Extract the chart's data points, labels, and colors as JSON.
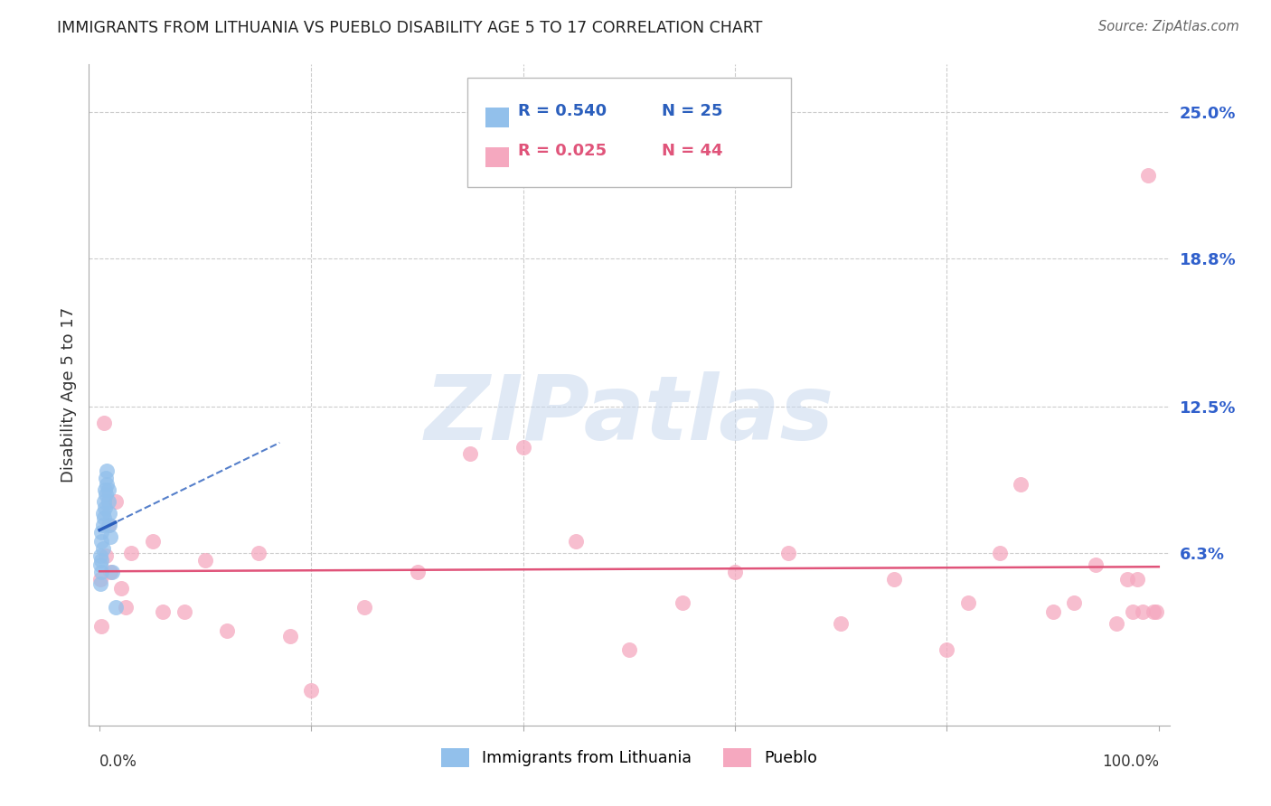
{
  "title": "IMMIGRANTS FROM LITHUANIA VS PUEBLO DISABILITY AGE 5 TO 17 CORRELATION CHART",
  "source": "Source: ZipAtlas.com",
  "ylabel": "Disability Age 5 to 17",
  "ytick_vals": [
    0.0,
    0.063,
    0.125,
    0.188,
    0.25
  ],
  "ytick_labels": [
    "",
    "6.3%",
    "12.5%",
    "18.8%",
    "25.0%"
  ],
  "legend_label_blue": "Immigrants from Lithuania",
  "legend_label_pink": "Pueblo",
  "blue_color": "#92c0eb",
  "pink_color": "#f5a8bf",
  "blue_line_color": "#2b5fbd",
  "pink_line_color": "#e0547a",
  "watermark_text": "ZIPatlas",
  "blue_scatter_x": [
    0.0005,
    0.001,
    0.001,
    0.0015,
    0.002,
    0.002,
    0.002,
    0.003,
    0.003,
    0.003,
    0.004,
    0.004,
    0.005,
    0.005,
    0.006,
    0.006,
    0.007,
    0.007,
    0.008,
    0.008,
    0.009,
    0.009,
    0.01,
    0.012,
    0.015
  ],
  "blue_scatter_y": [
    0.058,
    0.05,
    0.062,
    0.055,
    0.06,
    0.068,
    0.072,
    0.065,
    0.075,
    0.08,
    0.078,
    0.085,
    0.082,
    0.09,
    0.088,
    0.095,
    0.092,
    0.098,
    0.09,
    0.085,
    0.08,
    0.075,
    0.07,
    0.055,
    0.04
  ],
  "pink_scatter_x": [
    0.001,
    0.002,
    0.004,
    0.006,
    0.008,
    0.01,
    0.015,
    0.02,
    0.025,
    0.03,
    0.05,
    0.06,
    0.08,
    0.1,
    0.12,
    0.15,
    0.18,
    0.2,
    0.25,
    0.3,
    0.35,
    0.4,
    0.45,
    0.5,
    0.55,
    0.6,
    0.65,
    0.7,
    0.75,
    0.8,
    0.82,
    0.85,
    0.87,
    0.9,
    0.92,
    0.94,
    0.96,
    0.97,
    0.975,
    0.98,
    0.985,
    0.99,
    0.995,
    0.998
  ],
  "pink_scatter_y": [
    0.052,
    0.032,
    0.118,
    0.062,
    0.075,
    0.055,
    0.085,
    0.048,
    0.04,
    0.063,
    0.068,
    0.038,
    0.038,
    0.06,
    0.03,
    0.063,
    0.028,
    0.005,
    0.04,
    0.055,
    0.105,
    0.108,
    0.068,
    0.022,
    0.042,
    0.055,
    0.063,
    0.033,
    0.052,
    0.022,
    0.042,
    0.063,
    0.092,
    0.038,
    0.042,
    0.058,
    0.033,
    0.052,
    0.038,
    0.052,
    0.038,
    0.223,
    0.038,
    0.038
  ]
}
